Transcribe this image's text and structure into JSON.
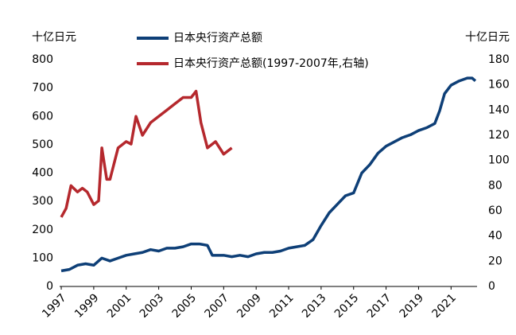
{
  "chart_data": {
    "type": "line",
    "y_axis_label": "十亿日元",
    "y2_axis_label": "十亿日元",
    "xlim": [
      1996.9,
      2022.6
    ],
    "xticks": [
      1997,
      1999,
      2001,
      2003,
      2005,
      2007,
      2009,
      2011,
      2013,
      2015,
      2017,
      2019,
      2021
    ],
    "ylim": [
      0,
      800
    ],
    "yticks": [
      0,
      100,
      200,
      300,
      400,
      500,
      600,
      700,
      800
    ],
    "y2lim": [
      0,
      180
    ],
    "y2ticks": [
      0,
      20,
      40,
      60,
      80,
      100,
      120,
      140,
      160,
      180
    ],
    "grid": false,
    "series": [
      {
        "name": "日本央行资产总额",
        "color": "#0e3f77",
        "axis": "y",
        "x": [
          1997,
          1997.5,
          1998,
          1998.5,
          1999,
          1999.5,
          2000,
          2000.5,
          2001,
          2001.5,
          2002,
          2002.5,
          2003,
          2003.5,
          2004,
          2004.5,
          2005,
          2005.5,
          2006,
          2006.3,
          2007,
          2007.5,
          2008,
          2008.5,
          2009,
          2009.5,
          2010,
          2010.5,
          2011,
          2011.5,
          2012,
          2012.5,
          2013,
          2013.5,
          2014,
          2014.5,
          2015,
          2015.5,
          2016,
          2016.5,
          2017,
          2017.5,
          2018,
          2018.5,
          2019,
          2019.5,
          2020,
          2020.3,
          2020.6,
          2021,
          2021.5,
          2022,
          2022.3,
          2022.5
        ],
        "values": [
          55,
          60,
          75,
          80,
          75,
          100,
          90,
          100,
          110,
          115,
          120,
          130,
          125,
          135,
          135,
          140,
          150,
          150,
          145,
          110,
          110,
          105,
          110,
          105,
          115,
          120,
          120,
          125,
          135,
          140,
          145,
          165,
          215,
          260,
          290,
          320,
          330,
          400,
          430,
          470,
          495,
          510,
          525,
          535,
          550,
          560,
          575,
          620,
          680,
          710,
          725,
          735,
          735,
          725
        ]
      },
      {
        "name": "日本央行资产总额(1997-2007年,右轴)",
        "color": "#b5282d",
        "axis": "y2",
        "x": [
          1997,
          1997.3,
          1997.6,
          1998,
          1998.3,
          1998.6,
          1999,
          1999.3,
          1999.5,
          1999.8,
          2000,
          2000.5,
          2001,
          2001.3,
          2001.6,
          2002,
          2002.5,
          2003,
          2003.5,
          2004,
          2004.5,
          2005,
          2005.3,
          2005.6,
          2006,
          2006.5,
          2007,
          2007.5
        ],
        "values": [
          55,
          62,
          80,
          75,
          78,
          75,
          65,
          68,
          110,
          85,
          85,
          110,
          115,
          113,
          135,
          120,
          130,
          135,
          140,
          145,
          150,
          150,
          155,
          130,
          110,
          115,
          105,
          110
        ]
      }
    ]
  }
}
